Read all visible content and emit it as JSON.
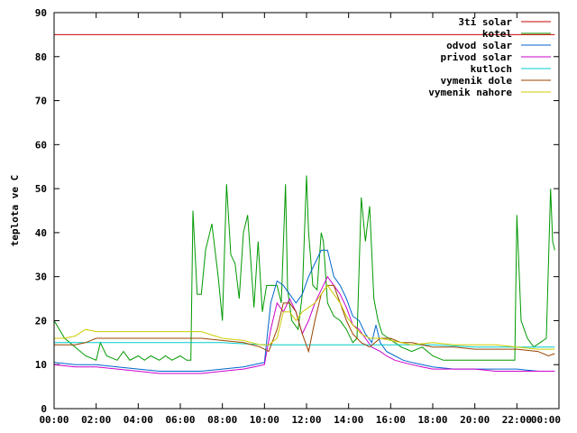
{
  "chart_data": {
    "type": "line",
    "title": "",
    "xlabel": "",
    "ylabel": "teplota ve C",
    "ylim": [
      0,
      90
    ],
    "xlim": [
      0,
      24
    ],
    "y_ticks": [
      0,
      10,
      20,
      30,
      40,
      50,
      60,
      70,
      80,
      90
    ],
    "x_ticks": [
      0,
      2,
      4,
      6,
      8,
      10,
      12,
      14,
      16,
      18,
      20,
      22,
      24
    ],
    "x_tick_labels": [
      "00:00",
      "02:00",
      "04:00",
      "06:00",
      "08:00",
      "10:00",
      "12:00",
      "14:00",
      "16:00",
      "18:00",
      "20:00",
      "22:00",
      "00:00"
    ],
    "legend_position": "top-right",
    "grid": false,
    "series": [
      {
        "name": "3ti solar",
        "color": "#cc0000",
        "x": [
          0,
          23.8
        ],
        "y": [
          85,
          85
        ]
      },
      {
        "name": "kotel",
        "color": "#009900",
        "x": [
          0,
          0.5,
          1,
          1.5,
          2,
          2.2,
          2.5,
          3,
          3.3,
          3.6,
          4,
          4.3,
          4.6,
          5,
          5.3,
          5.6,
          6,
          6.3,
          6.5,
          6.6,
          6.8,
          7,
          7.2,
          7.5,
          7.8,
          8,
          8.2,
          8.4,
          8.6,
          8.8,
          9,
          9.2,
          9.5,
          9.7,
          9.9,
          10.1,
          10.3,
          10.6,
          10.8,
          11.0,
          11.1,
          11.3,
          11.6,
          11.8,
          12,
          12.1,
          12.3,
          12.5,
          12.7,
          12.8,
          13.0,
          13.3,
          13.6,
          13.9,
          14.2,
          14.4,
          14.6,
          14.8,
          15.0,
          15.2,
          15.4,
          15.6,
          15.9,
          16.2,
          16.5,
          17,
          17.5,
          18,
          18.5,
          19,
          19.5,
          20,
          20.5,
          21,
          21.5,
          21.8,
          21.9,
          22.0,
          22.2,
          22.5,
          22.8,
          23.1,
          23.4,
          23.6,
          23.7,
          23.8
        ],
        "y": [
          20,
          16,
          14,
          12,
          11,
          15,
          12,
          11,
          13,
          11,
          12,
          11,
          12,
          11,
          12,
          11,
          12,
          11,
          11,
          45,
          26,
          26,
          36,
          42,
          30,
          20,
          51,
          35,
          33,
          25,
          40,
          44,
          23,
          38,
          22,
          28,
          28,
          28,
          24,
          51,
          27,
          20,
          18,
          26,
          53,
          40,
          28,
          27,
          40,
          38,
          24,
          21,
          20,
          18,
          15,
          16,
          48,
          38,
          46,
          25,
          20,
          17,
          16,
          15,
          14,
          13,
          14,
          12,
          11,
          11,
          11,
          11,
          11,
          11,
          11,
          11,
          11,
          44,
          20,
          16,
          14,
          15,
          16,
          50,
          38,
          36
        ]
      },
      {
        "name": "odvod solar",
        "color": "#0066cc",
        "x": [
          0,
          1,
          2,
          3,
          4,
          5,
          6,
          7,
          8,
          9,
          9.5,
          10,
          10.3,
          10.6,
          10.9,
          11.2,
          11.5,
          11.8,
          12.1,
          12.4,
          12.7,
          13.0,
          13.3,
          13.6,
          13.9,
          14.2,
          14.5,
          14.8,
          15.1,
          15.3,
          15.5,
          15.8,
          16.2,
          16.6,
          17,
          17.5,
          18,
          19,
          20,
          21,
          22,
          23,
          23.8
        ],
        "y": [
          10.5,
          10,
          10,
          9.5,
          9,
          8.5,
          8.5,
          8.5,
          9,
          9.5,
          10,
          10.5,
          24,
          29,
          28,
          26,
          24,
          26,
          30,
          33,
          36,
          36,
          30,
          28,
          25,
          21,
          20,
          17,
          15,
          19,
          15,
          13,
          12,
          11,
          10.5,
          10,
          9.5,
          9,
          9,
          9,
          9,
          8.5,
          8.5
        ]
      },
      {
        "name": "privod solar",
        "color": "#cc00cc",
        "x": [
          0,
          1,
          2,
          3,
          4,
          5,
          6,
          7,
          8,
          9,
          9.5,
          10,
          10.3,
          10.6,
          10.9,
          11.2,
          11.5,
          11.8,
          12.1,
          12.4,
          12.7,
          13.0,
          13.3,
          13.6,
          13.9,
          14.2,
          14.5,
          14.8,
          15.1,
          15.5,
          15.8,
          16.2,
          16.6,
          17,
          17.5,
          18,
          19,
          20,
          21,
          22,
          23,
          23.8
        ],
        "y": [
          10,
          9.5,
          9.5,
          9,
          8.5,
          8,
          8,
          8,
          8.5,
          9,
          9.5,
          10,
          18,
          24,
          22,
          25,
          22,
          17,
          20,
          24,
          27,
          30,
          28,
          26,
          23,
          19,
          18,
          16,
          14,
          13,
          12,
          11,
          10.5,
          10,
          9.5,
          9,
          9,
          9,
          8.5,
          8.5,
          8.5,
          8.5
        ]
      },
      {
        "name": "kutloch",
        "color": "#00cccc",
        "x": [
          0,
          2,
          4,
          6,
          8,
          10,
          12,
          14,
          16,
          18,
          20,
          22,
          23.8
        ],
        "y": [
          15,
          15,
          15,
          15,
          15,
          14.5,
          14.5,
          14.5,
          14.5,
          14.5,
          14,
          14,
          14
        ]
      },
      {
        "name": "vymenik dole",
        "color": "#994400",
        "x": [
          0,
          1,
          1.5,
          2,
          3,
          4,
          5,
          6,
          7,
          8,
          9,
          9.8,
          10.2,
          10.6,
          10.9,
          11.2,
          11.5,
          11.8,
          12.1,
          12.4,
          12.7,
          13.0,
          13.3,
          13.6,
          13.9,
          14.2,
          14.6,
          15.0,
          15.5,
          16,
          16.5,
          17,
          18,
          19,
          20,
          21,
          22,
          23,
          23.5,
          23.8
        ],
        "y": [
          14.5,
          14.5,
          15,
          16,
          16,
          16,
          16,
          16,
          16,
          15.5,
          15,
          14,
          13,
          18,
          24,
          24,
          22,
          17,
          13,
          20,
          26,
          28,
          28,
          24,
          20,
          17,
          15,
          14,
          16,
          16,
          15,
          15,
          14,
          14,
          13.5,
          13.5,
          13.5,
          13,
          12,
          12.5
        ]
      },
      {
        "name": "vymenik nahore",
        "color": "#cccc00",
        "x": [
          0,
          0.5,
          1,
          1.5,
          2,
          3,
          4,
          5,
          6,
          7,
          8,
          9,
          9.8,
          10.2,
          10.6,
          10.9,
          11.2,
          11.5,
          11.8,
          12.1,
          12.4,
          12.7,
          13.0,
          13.3,
          13.6,
          13.9,
          14.2,
          14.6,
          15.0,
          15.5,
          16,
          16.5,
          17,
          18,
          19,
          20,
          21,
          22,
          23,
          23.8
        ],
        "y": [
          16,
          16,
          16.5,
          18,
          17.5,
          17.5,
          17.5,
          17.5,
          17.5,
          17.5,
          16,
          15.5,
          14.5,
          14.5,
          16,
          22,
          22,
          20,
          22,
          23,
          24,
          26,
          28,
          26,
          24,
          21,
          19,
          17,
          16,
          16,
          15.5,
          15,
          14.5,
          15,
          14.5,
          14.5,
          14.5,
          14,
          13.5,
          13.5
        ]
      }
    ]
  }
}
